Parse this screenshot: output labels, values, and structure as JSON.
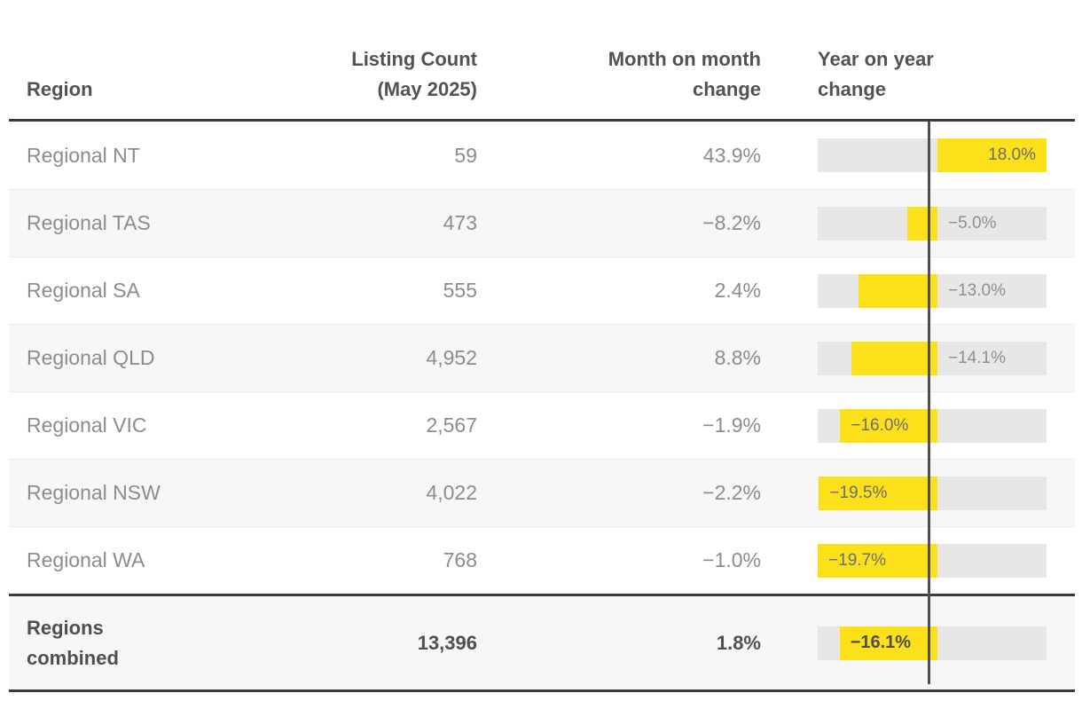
{
  "header": {
    "region": "Region",
    "listing_count_line1": "Listing Count",
    "listing_count_line2": "(May 2025)",
    "mom_line1": "Month on month",
    "mom_line2": "change",
    "yoy_line1": "Year on year",
    "yoy_line2": "change"
  },
  "rows": [
    {
      "region": "Regional NT",
      "count": "59",
      "mom": "43.9%",
      "yoy_label": "18.0%",
      "yoy_value": 18.0
    },
    {
      "region": "Regional TAS",
      "count": "473",
      "mom": "−8.2%",
      "yoy_label": "−5.0%",
      "yoy_value": -5.0
    },
    {
      "region": "Regional SA",
      "count": "555",
      "mom": "2.4%",
      "yoy_label": "−13.0%",
      "yoy_value": -13.0
    },
    {
      "region": "Regional QLD",
      "count": "4,952",
      "mom": "8.8%",
      "yoy_label": "−14.1%",
      "yoy_value": -14.1
    },
    {
      "region": "Regional VIC",
      "count": "2,567",
      "mom": "−1.9%",
      "yoy_label": "−16.0%",
      "yoy_value": -16.0
    },
    {
      "region": "Regional NSW",
      "count": "4,022",
      "mom": "−2.2%",
      "yoy_label": "−19.5%",
      "yoy_value": -19.5
    },
    {
      "region": "Regional WA",
      "count": "768",
      "mom": "−1.0%",
      "yoy_label": "−19.7%",
      "yoy_value": -19.7
    }
  ],
  "total_row": {
    "region": "Regions combined",
    "count": "13,396",
    "mom": "1.8%",
    "yoy_label": "−16.1%",
    "yoy_value": -16.1
  },
  "colors": {
    "bar_yellow": "#fbe01a",
    "bar_track_gray": "#e7e7e7",
    "stripe_row_gray": "#f7f7f7",
    "border_dark": "#3a3a3a",
    "axis_line": "#4f4f4f",
    "header_text": "#525252",
    "row_text": "#8c8c8c"
  },
  "chart_data": {
    "type": "table",
    "title": "Regional listing counts — May 2025",
    "columns": [
      "Region",
      "Listing Count (May 2025)",
      "Month on month change",
      "Year on year change"
    ],
    "rows": [
      [
        "Regional NT",
        59,
        43.9,
        18.0
      ],
      [
        "Regional TAS",
        473,
        -8.2,
        -5.0
      ],
      [
        "Regional SA",
        555,
        2.4,
        -13.0
      ],
      [
        "Regional QLD",
        4952,
        8.8,
        -14.1
      ],
      [
        "Regional VIC",
        2567,
        -1.9,
        -16.0
      ],
      [
        "Regional NSW",
        4022,
        -2.2,
        -19.5
      ],
      [
        "Regional WA",
        768,
        -1.0,
        -19.7
      ],
      [
        "Regions combined",
        13396,
        1.8,
        -16.1
      ]
    ],
    "embedded_bar_chart": {
      "type": "bar",
      "orientation": "horizontal",
      "column": "Year on year change",
      "values": [
        18.0,
        -5.0,
        -13.0,
        -14.1,
        -16.0,
        -19.5,
        -19.7,
        -16.1
      ],
      "xlim": [
        -19.7,
        18.0
      ],
      "zero_line": true,
      "bar_color": "#fbe01a",
      "track_color": "#e7e7e7"
    }
  }
}
